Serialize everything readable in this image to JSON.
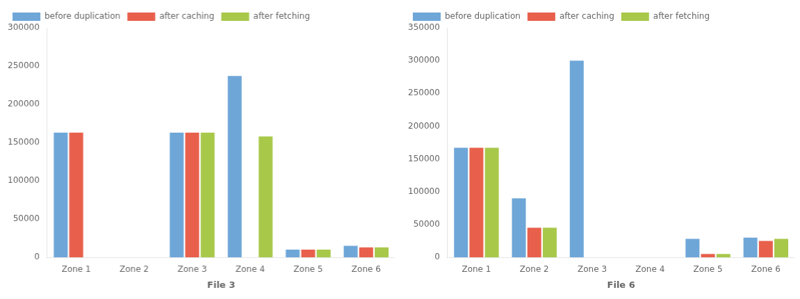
{
  "chart_data": [
    {
      "type": "bar",
      "xlabel": "File 3",
      "categories": [
        "Zone 1",
        "Zone 2",
        "Zone 3",
        "Zone 4",
        "Zone 5",
        "Zone 6"
      ],
      "series": [
        {
          "name": "before duplication",
          "color": "#6EA6D8",
          "values": [
            163000,
            0,
            163000,
            237000,
            10000,
            15000
          ]
        },
        {
          "name": "after caching",
          "color": "#E8604C",
          "values": [
            163000,
            0,
            163000,
            0,
            10000,
            13000
          ]
        },
        {
          "name": "after fetching",
          "color": "#A8C84A",
          "values": [
            0,
            0,
            163000,
            158000,
            10000,
            13000
          ]
        }
      ],
      "ylim": [
        0,
        300000
      ],
      "yticks": [
        0,
        50000,
        100000,
        150000,
        200000,
        250000,
        300000
      ],
      "grid": false,
      "legend": "upper left"
    },
    {
      "type": "bar",
      "xlabel": "File 6",
      "categories": [
        "Zone 1",
        "Zone 2",
        "Zone 3",
        "Zone 4",
        "Zone 5",
        "Zone 6"
      ],
      "series": [
        {
          "name": "before duplication",
          "color": "#6EA6D8",
          "values": [
            167000,
            90000,
            300000,
            0,
            28000,
            30000
          ]
        },
        {
          "name": "after caching",
          "color": "#E8604C",
          "values": [
            167000,
            45000,
            0,
            0,
            5000,
            25000
          ]
        },
        {
          "name": "after fetching",
          "color": "#A8C84A",
          "values": [
            167000,
            45000,
            0,
            0,
            5000,
            28000
          ]
        }
      ],
      "ylim": [
        0,
        350000
      ],
      "yticks": [
        0,
        50000,
        100000,
        150000,
        200000,
        250000,
        300000,
        350000
      ],
      "grid": false,
      "legend": "upper left"
    }
  ]
}
